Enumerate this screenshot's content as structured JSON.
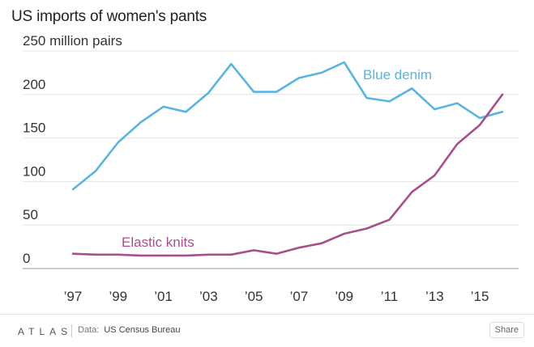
{
  "header": {
    "title": "US imports of women's pants"
  },
  "chart_data": {
    "type": "line",
    "title": "US imports of women's pants",
    "y_unit_label": "250 million pairs",
    "x": [
      1997,
      1998,
      1999,
      2000,
      2001,
      2002,
      2003,
      2004,
      2005,
      2006,
      2007,
      2008,
      2009,
      2010,
      2011,
      2012,
      2013,
      2014,
      2015,
      2016
    ],
    "x_ticks": [
      1997,
      1999,
      2001,
      2003,
      2005,
      2007,
      2009,
      2011,
      2013,
      2015
    ],
    "x_tick_labels": [
      "’97",
      "’99",
      "’01",
      "’03",
      "’05",
      "’07",
      "’09",
      "’11",
      "’13",
      "’15"
    ],
    "y_ticks": [
      0,
      50,
      100,
      150,
      200,
      250
    ],
    "y_tick_labels": [
      "0",
      "50",
      "100",
      "150",
      "200",
      "250 million pairs"
    ],
    "ylim": [
      0,
      250
    ],
    "grid": true,
    "series": [
      {
        "name": "Blue denim",
        "color": "#5ab4e0",
        "values": [
          91,
          112,
          145,
          168,
          186,
          180,
          202,
          235,
          203,
          203,
          219,
          225,
          237,
          196,
          192,
          207,
          183,
          190,
          173,
          180
        ]
      },
      {
        "name": "Elastic knits",
        "color": "#a64f8a",
        "values": [
          17,
          16,
          16,
          15,
          15,
          15,
          16,
          16,
          21,
          17,
          24,
          29,
          40,
          46,
          56,
          88,
          107,
          143,
          165,
          200
        ]
      }
    ]
  },
  "footer": {
    "brand": "ATLAS",
    "source_label": "Data:",
    "source_value": "US Census Bureau",
    "share_label": "Share"
  }
}
